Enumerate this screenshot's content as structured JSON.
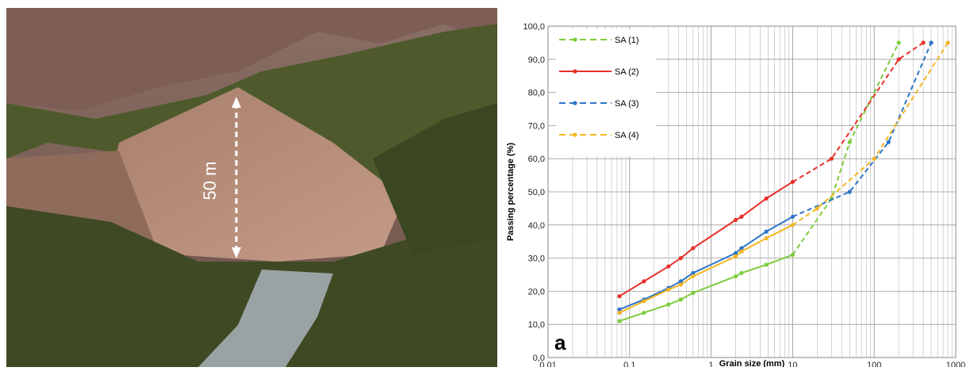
{
  "photo": {
    "annotation": "50 m"
  },
  "chart_data": {
    "type": "line",
    "xlabel": "Grain size (mm)",
    "ylabel": "Passing percentage (%)",
    "annotation": "a",
    "xscale": "log",
    "grid": true,
    "legend": "upper left",
    "dashed_beyond_x": 10,
    "xlim": [
      0.01,
      1000
    ],
    "xticks": [
      {
        "value": 0.01,
        "label": "0,01"
      },
      {
        "value": 0.1,
        "label": "0,1"
      },
      1,
      10,
      100,
      1000
    ],
    "ylim": [
      0,
      100
    ],
    "yticks": [
      {
        "value": 0,
        "label": "0,0"
      },
      {
        "value": 10,
        "label": "10,0"
      },
      {
        "value": 20,
        "label": "20,0"
      },
      {
        "value": 30,
        "label": "30,0"
      },
      {
        "value": 40,
        "label": "40,0"
      },
      {
        "value": 50,
        "label": "50,0"
      },
      {
        "value": 60,
        "label": "60,0"
      },
      {
        "value": 70,
        "label": "70,0"
      },
      {
        "value": 80,
        "label": "80,0"
      },
      {
        "value": 90,
        "label": "90,0"
      },
      {
        "value": 100,
        "label": "100,0"
      }
    ],
    "series": [
      {
        "name": "SA (1)",
        "color": "#7ccc3c",
        "x": [
          0.075,
          0.15,
          0.3,
          0.425,
          0.6,
          2,
          2.36,
          4.75,
          10,
          30,
          50,
          200
        ],
        "values": [
          11,
          13.5,
          16,
          17.5,
          19.5,
          24.5,
          25.5,
          28,
          31,
          48,
          65,
          95
        ]
      },
      {
        "name": "SA (2)",
        "color": "#e8302a",
        "x": [
          0.075,
          0.15,
          0.3,
          0.425,
          0.6,
          2,
          2.36,
          4.75,
          10,
          30,
          200,
          400
        ],
        "values": [
          18.5,
          23,
          27.5,
          30,
          33,
          41.5,
          42.5,
          48,
          53,
          60,
          90,
          95
        ]
      },
      {
        "name": "SA (3)",
        "color": "#2e75c8",
        "x": [
          0.075,
          0.15,
          0.3,
          0.425,
          0.6,
          2,
          2.36,
          4.75,
          10,
          50,
          150,
          500
        ],
        "values": [
          14.5,
          17.5,
          21,
          23,
          25.5,
          31.5,
          33,
          38,
          42.5,
          50,
          65,
          95
        ]
      },
      {
        "name": "SA (4)",
        "color": "#f5b622",
        "x": [
          0.075,
          0.15,
          0.3,
          0.425,
          0.6,
          2,
          2.36,
          4.75,
          10,
          20,
          100,
          800
        ],
        "values": [
          13.5,
          17,
          20.5,
          22,
          24.5,
          30.5,
          32,
          36,
          40,
          45,
          60,
          95
        ]
      }
    ]
  }
}
